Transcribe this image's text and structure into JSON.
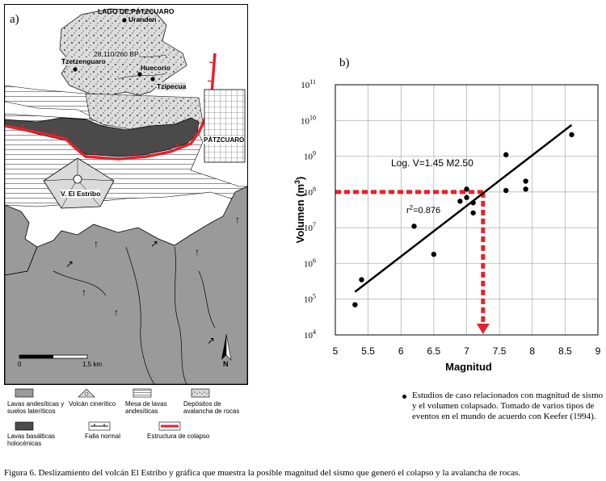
{
  "panel_a": {
    "label": "a)",
    "places": {
      "lake": "LAGO DE PÁTZCUARO",
      "uranden": "Uranden",
      "dating": "28,110/260 BP",
      "tzetzenguaro": "Tzetzenguaro",
      "huecorio": "Huecorio",
      "tzipecua": "Tzipecua",
      "patzcuaro": "PÁTZCUARO",
      "volcano": "V. El Estribo"
    },
    "scale": {
      "zero": "0",
      "end": "1,5 km"
    },
    "north": "N",
    "legend": [
      {
        "key": "andesitic",
        "label": "Lavas andesíticas y suelos lateríticos"
      },
      {
        "key": "cinder",
        "label": "Volcán cinerítico"
      },
      {
        "key": "mesa",
        "label": "Mesa de lavas andesíticas"
      },
      {
        "key": "avalanche",
        "label": "Depósitos de avalancha de rocas"
      },
      {
        "key": "basaltic",
        "label": "Lavas basálticas holocénicas"
      },
      {
        "key": "fault",
        "label": "Falla normal"
      },
      {
        "key": "collapse",
        "label": "Estructura de colapso"
      }
    ]
  },
  "panel_b": {
    "label": "b)"
  },
  "chart_data": {
    "type": "scatter",
    "xlabel": "Magnitud",
    "ylabel": "Volumen (m3)",
    "ylabel_base": "Volumen  (m",
    "ylabel_exp": "3",
    "ylabel_close": ")",
    "xlim": [
      5,
      9
    ],
    "xticks": [
      5,
      5.5,
      6,
      6.5,
      7,
      7.5,
      8,
      8.5,
      9
    ],
    "xtick_labels": [
      "5",
      "5.5",
      "6",
      "6.5",
      "7",
      "7.5",
      "8",
      "8.5",
      "9"
    ],
    "y_scale": "log",
    "ylim_exp": [
      4,
      11
    ],
    "yticks_exp": [
      4,
      5,
      6,
      7,
      8,
      9,
      10,
      11
    ],
    "ytick_base": "10",
    "grid": true,
    "points": [
      {
        "x": 5.3,
        "y": 70000
      },
      {
        "x": 5.4,
        "y": 350000
      },
      {
        "x": 6.2,
        "y": 11000000
      },
      {
        "x": 6.5,
        "y": 1800000
      },
      {
        "x": 6.9,
        "y": 55000000
      },
      {
        "x": 7.0,
        "y": 120000000
      },
      {
        "x": 7.0,
        "y": 70000000
      },
      {
        "x": 7.1,
        "y": 50000000
      },
      {
        "x": 7.1,
        "y": 26000000
      },
      {
        "x": 7.6,
        "y": 1100000000
      },
      {
        "x": 7.6,
        "y": 110000000
      },
      {
        "x": 7.9,
        "y": 200000000
      },
      {
        "x": 7.9,
        "y": 120000000
      },
      {
        "x": 8.6,
        "y": 4000000000
      }
    ],
    "fit_line": {
      "x": [
        5.3,
        8.6
      ],
      "y": [
        160000,
        7500000000
      ]
    },
    "equation": "Log. V=1.45 M2.50",
    "r2_prefix": "r",
    "r2_exp": "2",
    "r2_value": "=0.876",
    "projection": {
      "volume": 100000000,
      "magnitude": 7.25,
      "color": "#e8202a"
    },
    "legend_note": "Estudios de caso relacionados con magnitud de sismo y el volumen colapsado. Tomado de varios tipos de eventos en el mundo de acuerdo con Keefer (1994)."
  },
  "caption": "Figura 6. Deslizamiento del volcán El Estribo y gráfica que muestra la posible magnitud del sismo que generó el colapso y la avalancha de rocas.",
  "colors": {
    "collapse": "#e8202a",
    "basaltic": "#4a4a4a",
    "andesitic": "#9a9a9a"
  }
}
